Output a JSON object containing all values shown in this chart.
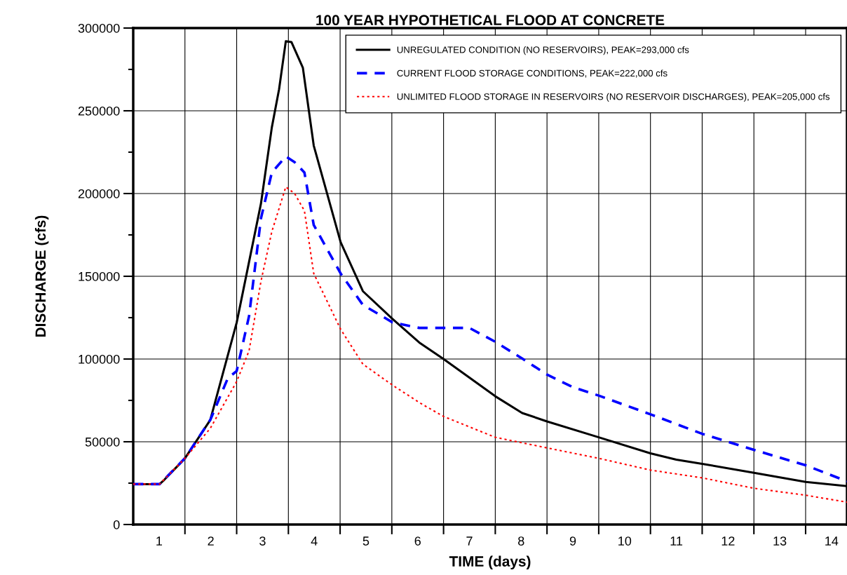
{
  "chart_data": {
    "type": "line",
    "title": "100 YEAR HYPOTHETICAL FLOOD AT CONCRETE",
    "xlabel": "TIME (days)",
    "ylabel": "DISCHARGE (cfs)",
    "xlim": [
      0,
      13.8
    ],
    "ylim": [
      0,
      300000
    ],
    "xticks": [
      {
        "value": 0.5,
        "label": "1"
      },
      {
        "value": 1,
        "label": null
      },
      {
        "value": 1.5,
        "label": "2"
      },
      {
        "value": 2,
        "label": null
      },
      {
        "value": 2.5,
        "label": "3"
      },
      {
        "value": 3,
        "label": null
      },
      {
        "value": 3.5,
        "label": "4"
      },
      {
        "value": 4,
        "label": null
      },
      {
        "value": 4.5,
        "label": "5"
      },
      {
        "value": 5,
        "label": null
      },
      {
        "value": 5.5,
        "label": "6"
      },
      {
        "value": 6,
        "label": null
      },
      {
        "value": 6.5,
        "label": "7"
      },
      {
        "value": 7,
        "label": null
      },
      {
        "value": 7.5,
        "label": "8"
      },
      {
        "value": 8,
        "label": null
      },
      {
        "value": 8.5,
        "label": "9"
      },
      {
        "value": 9,
        "label": null
      },
      {
        "value": 9.5,
        "label": "10"
      },
      {
        "value": 10,
        "label": null
      },
      {
        "value": 10.5,
        "label": "11"
      },
      {
        "value": 11,
        "label": null
      },
      {
        "value": 11.5,
        "label": "12"
      },
      {
        "value": 12,
        "label": null
      },
      {
        "value": 12.5,
        "label": "13"
      },
      {
        "value": 13,
        "label": null
      },
      {
        "value": 13.5,
        "label": "14"
      }
    ],
    "yticks": [
      0,
      {
        "value": 25000,
        "label": null
      },
      50000,
      {
        "value": 75000,
        "label": null
      },
      100000,
      {
        "value": 125000,
        "label": null
      },
      150000,
      {
        "value": 175000,
        "label": null
      },
      200000,
      {
        "value": 225000,
        "label": null
      },
      250000,
      {
        "value": 275000,
        "label": null
      },
      300000
    ],
    "grid": true,
    "legend": "top right",
    "series": [
      {
        "name": "UNREGULATED CONDITION (NO RESERVOIRS), PEAK=293,000 cfs",
        "color": "#000000",
        "line_style": "solid",
        "x": [
          0,
          0.51,
          0.6,
          1.0,
          1.49,
          2.0,
          2.47,
          2.68,
          2.82,
          2.95,
          3.06,
          3.28,
          3.49,
          4.01,
          4.44,
          5.01,
          5.53,
          6.0,
          7.0,
          7.52,
          8.0,
          9.0,
          10.0,
          10.5,
          11.0,
          12.0,
          13.0,
          13.8
        ],
        "values": [
          24400,
          24400,
          27000,
          40000,
          63200,
          122000,
          194000,
          240000,
          263000,
          292000,
          291500,
          276000,
          229000,
          170600,
          141000,
          124300,
          110000,
          100000,
          77500,
          67400,
          62300,
          52700,
          43000,
          39200,
          36700,
          31200,
          25700,
          23200
        ]
      },
      {
        "name": "CURRENT FLOOD STORAGE CONDITIONS, PEAK=222,000 cfs",
        "color": "#0000ff",
        "line_style": "dashed",
        "x": [
          0,
          0.51,
          1.0,
          1.49,
          1.83,
          2.0,
          2.24,
          2.47,
          2.68,
          2.95,
          3.12,
          3.31,
          3.49,
          4.01,
          4.44,
          5.01,
          5.53,
          6.0,
          6.5,
          7.0,
          7.52,
          8.0,
          8.5,
          9.0,
          10.0,
          11.0,
          12.0,
          13.0,
          13.8
        ],
        "values": [
          24400,
          24400,
          40000,
          63200,
          88500,
          92700,
          126000,
          185000,
          212700,
          222400,
          219000,
          212700,
          181000,
          151700,
          132700,
          122200,
          118800,
          118800,
          118800,
          110400,
          100300,
          90600,
          83000,
          77900,
          66600,
          54800,
          45100,
          35800,
          26100
        ]
      },
      {
        "name": "UNLIMITED FLOOD STORAGE IN RESERVOIRS (NO RESERVOIR DISCHARGES), PEAK=205,000 cfs",
        "color": "#ff0000",
        "line_style": "dotted",
        "x": [
          0,
          0.51,
          1.0,
          1.49,
          2.0,
          2.24,
          2.47,
          2.68,
          2.95,
          3.12,
          3.31,
          3.49,
          4.01,
          4.44,
          5.01,
          5.53,
          6.0,
          7.0,
          8.0,
          9.0,
          10.0,
          11.0,
          12.0,
          13.0,
          13.8
        ],
        "values": [
          24400,
          24400,
          40000,
          58100,
          86400,
          105000,
          147000,
          177000,
          204000,
          200000,
          189600,
          151700,
          118000,
          96900,
          84300,
          73700,
          65300,
          52700,
          46300,
          40000,
          32900,
          28200,
          21900,
          17700,
          13500
        ]
      }
    ]
  }
}
